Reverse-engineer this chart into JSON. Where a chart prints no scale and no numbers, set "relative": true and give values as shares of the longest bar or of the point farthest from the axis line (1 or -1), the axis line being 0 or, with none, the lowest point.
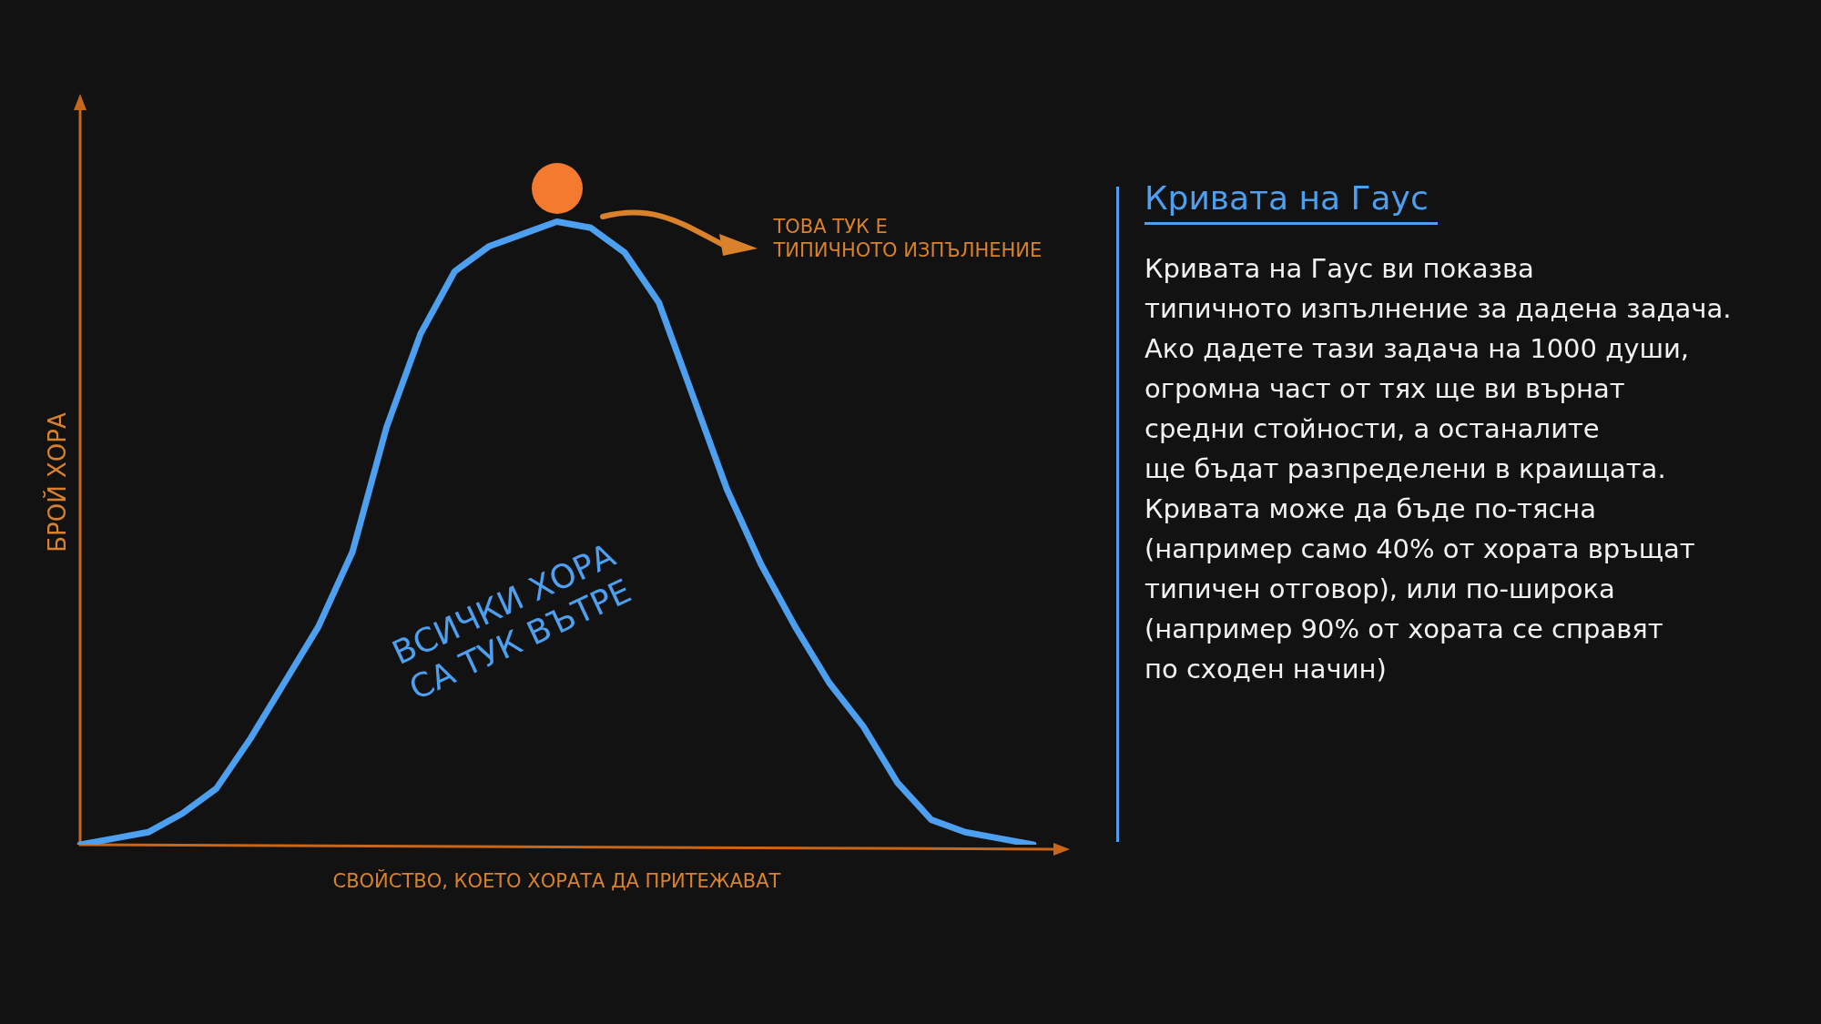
{
  "chart_data": [
    {
      "type": "line",
      "relative": true,
      "xlabel": "СВОЙСТВО, КОЕТО ХОРАТА ДА ПРИТЕЖАВАТ",
      "ylabel": "БРОЙ ХОРА",
      "categories": [
        null,
        null,
        null,
        null,
        null,
        null,
        null,
        null,
        null,
        null,
        null,
        null,
        null,
        null,
        null,
        null,
        null,
        null,
        null,
        null,
        null,
        null,
        null,
        null,
        null,
        null,
        null,
        null,
        null
      ],
      "series": [
        {
          "color": "#4d9ff0",
          "values": [
            0,
            0.01,
            0.02,
            0.05,
            0.09,
            0.17,
            0.26,
            0.35,
            0.47,
            0.67,
            0.82,
            0.92,
            0.96,
            0.98,
            1,
            0.99,
            0.95,
            0.87,
            0.72,
            0.57,
            0.45,
            0.35,
            0.26,
            0.19,
            0.1,
            0.04,
            0.02,
            0.01,
            0
          ]
        }
      ],
      "annotations": [
        "ТОВА ТУК Е\nТИПИЧНОТО ИЗПЪЛНЕНИЕ",
        "ВСИЧКИ ХОРА\nСА ТУК ВЪТРЕ"
      ]
    },
    {
      "type": "other",
      "title": "Кривата на Гаус",
      "annotations": [
        "Кривата на Гаус ви показва\nтипичното изпълнение за дадена задача.\nАко дадете тази задача на 1000 души,\nогромна част от тях ще ви върнат\nсредни стойности, а останалите\nще бъдат разпределени в краищата.\nКривата може да бъде по-тясна\n(например само 40% от хората връщат\nтипичен отговор), или по-широка\n(например 90% от хората се справят\nпо сходен начин)"
      ]
    }
  ]
}
